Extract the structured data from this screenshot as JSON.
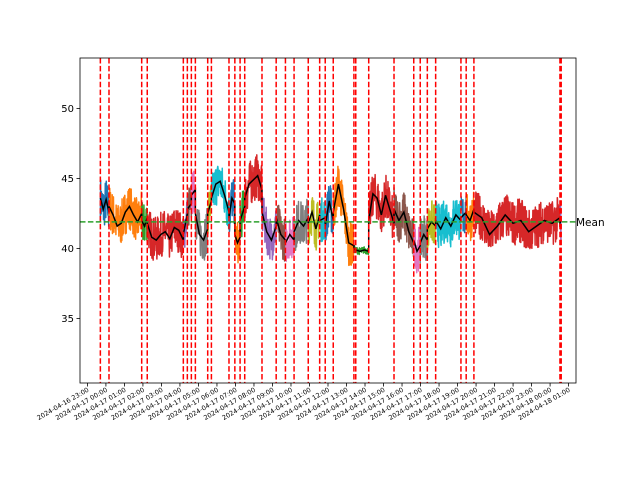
{
  "chart_data": {
    "type": "line",
    "title": "",
    "xlabel": "",
    "ylabel": "",
    "xlim": [
      "2024-04-16 22:36",
      "2024-04-18 01:24"
    ],
    "ylim": [
      30.4,
      53.6
    ],
    "yticks": [
      35,
      40,
      45,
      50
    ],
    "xticks": [
      "2024-04-16 23:00",
      "2024-04-17 00:00",
      "2024-04-17 01:00",
      "2024-04-17 02:00",
      "2024-04-17 03:00",
      "2024-04-17 04:00",
      "2024-04-17 05:00",
      "2024-04-17 06:00",
      "2024-04-17 07:00",
      "2024-04-17 08:00",
      "2024-04-17 09:00",
      "2024-04-17 10:00",
      "2024-04-17 11:00",
      "2024-04-17 12:00",
      "2024-04-17 13:00",
      "2024-04-17 14:00",
      "2024-04-17 15:00",
      "2024-04-17 16:00",
      "2024-04-17 17:00",
      "2024-04-17 18:00",
      "2024-04-17 19:00",
      "2024-04-17 20:00",
      "2024-04-17 21:00",
      "2024-04-17 22:00",
      "2024-04-17 23:00",
      "2024-04-18 00:00",
      "2024-04-18 01:00"
    ],
    "grid": false,
    "mean": {
      "value": 41.9,
      "label": "Mean",
      "color": "#2ca02c"
    },
    "segment_boundaries": [
      "2024-04-16 23:42",
      "2024-04-17 00:10",
      "2024-04-17 01:56",
      "2024-04-17 02:14",
      "2024-04-17 04:11",
      "2024-04-17 04:24",
      "2024-04-17 04:37",
      "2024-04-17 04:50",
      "2024-04-17 05:30",
      "2024-04-17 05:42",
      "2024-04-17 06:39",
      "2024-04-17 06:58",
      "2024-04-17 07:15",
      "2024-04-17 07:30",
      "2024-04-17 08:26",
      "2024-04-17 09:12",
      "2024-04-17 09:42",
      "2024-04-17 10:10",
      "2024-04-17 10:56",
      "2024-04-17 11:33",
      "2024-04-17 11:51",
      "2024-04-17 12:17",
      "2024-04-17 13:24",
      "2024-04-17 13:30",
      "2024-04-17 14:12",
      "2024-04-17 15:34",
      "2024-04-17 16:38",
      "2024-04-17 16:59",
      "2024-04-17 17:22",
      "2024-04-17 17:49",
      "2024-04-17 19:11",
      "2024-04-17 19:28",
      "2024-04-17 19:53",
      "2024-04-18 00:32",
      "2024-04-18 00:36"
    ],
    "boundary_color": "#ff0000",
    "series": [
      {
        "start": "2024-04-16 23:42",
        "end": "2024-04-17 00:10",
        "color": "#1f77b4",
        "values": [
          43.6,
          42.8,
          43.5,
          42.6
        ]
      },
      {
        "start": "2024-04-17 00:10",
        "end": "2024-04-17 01:56",
        "color": "#ff7f0e",
        "values": [
          43.0,
          42.4,
          41.6,
          41.8,
          42.6,
          43.0,
          42.4,
          41.9,
          42.5
        ]
      },
      {
        "start": "2024-04-17 01:56",
        "end": "2024-04-17 02:14",
        "color": "#2ca02c",
        "values": [
          42.0,
          41.6,
          42.2
        ]
      },
      {
        "start": "2024-04-17 02:14",
        "end": "2024-04-17 04:11",
        "color": "#d62728",
        "values": [
          41.8,
          40.8,
          40.6,
          41.0,
          41.2,
          40.7,
          41.5,
          41.3,
          40.6
        ]
      },
      {
        "start": "2024-04-17 04:11",
        "end": "2024-04-17 04:24",
        "color": "#9467bd",
        "values": [
          41.0,
          42.5
        ]
      },
      {
        "start": "2024-04-17 04:24",
        "end": "2024-04-17 04:37",
        "color": "#8c564b",
        "values": [
          42.8,
          43.2
        ]
      },
      {
        "start": "2024-04-17 04:37",
        "end": "2024-04-17 04:50",
        "color": "#e377c2",
        "values": [
          43.8,
          44.2
        ]
      },
      {
        "start": "2024-04-17 04:50",
        "end": "2024-04-17 05:30",
        "color": "#7f7f7f",
        "values": [
          42.5,
          41.0,
          40.6,
          41.4
        ]
      },
      {
        "start": "2024-04-17 05:30",
        "end": "2024-04-17 05:42",
        "color": "#bcbd22",
        "values": [
          42.5,
          43.4
        ]
      },
      {
        "start": "2024-04-17 05:42",
        "end": "2024-04-17 06:39",
        "color": "#17becf",
        "values": [
          43.6,
          44.6,
          44.8,
          43.8,
          42.6
        ]
      },
      {
        "start": "2024-04-17 06:39",
        "end": "2024-04-17 06:58",
        "color": "#1f77b4",
        "values": [
          42.2,
          43.6,
          43.2
        ]
      },
      {
        "start": "2024-04-17 06:58",
        "end": "2024-04-17 07:15",
        "color": "#ff7f0e",
        "values": [
          41.0,
          40.4,
          40.8
        ]
      },
      {
        "start": "2024-04-17 07:15",
        "end": "2024-04-17 07:30",
        "color": "#2ca02c",
        "values": [
          42.0,
          43.0
        ]
      },
      {
        "start": "2024-04-17 07:30",
        "end": "2024-04-17 08:26",
        "color": "#d62728",
        "values": [
          43.6,
          44.6,
          44.9,
          45.2,
          44.2
        ]
      },
      {
        "start": "2024-04-17 08:26",
        "end": "2024-04-17 09:12",
        "color": "#9467bd",
        "values": [
          42.6,
          41.2,
          40.6,
          41.6
        ]
      },
      {
        "start": "2024-04-17 09:12",
        "end": "2024-04-17 09:42",
        "color": "#8c564b",
        "values": [
          42.2,
          41.0,
          40.6
        ]
      },
      {
        "start": "2024-04-17 09:42",
        "end": "2024-04-17 10:10",
        "color": "#e377c2",
        "values": [
          40.4,
          41.0,
          40.6
        ]
      },
      {
        "start": "2024-04-17 10:10",
        "end": "2024-04-17 10:56",
        "color": "#7f7f7f",
        "values": [
          41.2,
          42.0,
          41.6,
          42.2
        ]
      },
      {
        "start": "2024-04-17 10:56",
        "end": "2024-04-17 11:33",
        "color": "#bcbd22",
        "values": [
          41.8,
          42.6,
          41.4,
          42.4
        ]
      },
      {
        "start": "2024-04-17 11:33",
        "end": "2024-04-17 11:51",
        "color": "#17becf",
        "values": [
          42.0,
          42.2
        ]
      },
      {
        "start": "2024-04-17 11:51",
        "end": "2024-04-17 12:17",
        "color": "#1f77b4",
        "values": [
          41.6,
          43.4,
          42.0
        ]
      },
      {
        "start": "2024-04-17 12:17",
        "end": "2024-04-17 13:24",
        "color": "#ff7f0e",
        "values": [
          42.6,
          44.6,
          42.8,
          40.4,
          40.2
        ]
      },
      {
        "start": "2024-04-17 13:24",
        "end": "2024-04-17 13:30",
        "color": "#2ca02c",
        "values": [
          40.0,
          39.9
        ]
      },
      {
        "start": "2024-04-17 13:30",
        "end": "2024-04-17 14:12",
        "color": "#2ca02c",
        "values": [
          39.9,
          39.8,
          39.9,
          39.8
        ]
      },
      {
        "start": "2024-04-17 14:12",
        "end": "2024-04-17 15:34",
        "color": "#d62728",
        "values": [
          42.0,
          43.9,
          43.6,
          42.4,
          43.8,
          42.8,
          41.8
        ]
      },
      {
        "start": "2024-04-17 15:34",
        "end": "2024-04-17 16:38",
        "color": "#8c564b",
        "values": [
          42.8,
          42.0,
          42.6,
          41.2,
          40.4
        ]
      },
      {
        "start": "2024-04-17 16:38",
        "end": "2024-04-17 16:59",
        "color": "#e377c2",
        "values": [
          40.6,
          39.8,
          40.2
        ]
      },
      {
        "start": "2024-04-17 16:59",
        "end": "2024-04-17 17:22",
        "color": "#7f7f7f",
        "values": [
          40.4,
          41.0,
          40.6
        ]
      },
      {
        "start": "2024-04-17 17:22",
        "end": "2024-04-17 17:49",
        "color": "#bcbd22",
        "values": [
          41.4,
          41.9,
          41.6
        ]
      },
      {
        "start": "2024-04-17 17:49",
        "end": "2024-04-17 19:11",
        "color": "#17becf",
        "values": [
          42.0,
          41.4,
          42.2,
          41.6,
          42.4,
          42.0
        ]
      },
      {
        "start": "2024-04-17 19:11",
        "end": "2024-04-17 19:28",
        "color": "#1f77b4",
        "values": [
          42.2,
          42.6
        ]
      },
      {
        "start": "2024-04-17 19:28",
        "end": "2024-04-17 19:53",
        "color": "#ff7f0e",
        "values": [
          42.4,
          42.0,
          42.8
        ]
      },
      {
        "start": "2024-04-17 19:53",
        "end": "2024-04-18 00:32",
        "color": "#d62728",
        "values": [
          42.6,
          42.2,
          41.0,
          41.6,
          42.4,
          41.8,
          42.0,
          41.2,
          41.6,
          42.0,
          41.8,
          42.2
        ]
      },
      {
        "start": "2024-04-18 00:32",
        "end": "2024-04-18 00:36",
        "color": "#9467bd",
        "values": [
          41.8,
          42.0
        ]
      }
    ]
  }
}
